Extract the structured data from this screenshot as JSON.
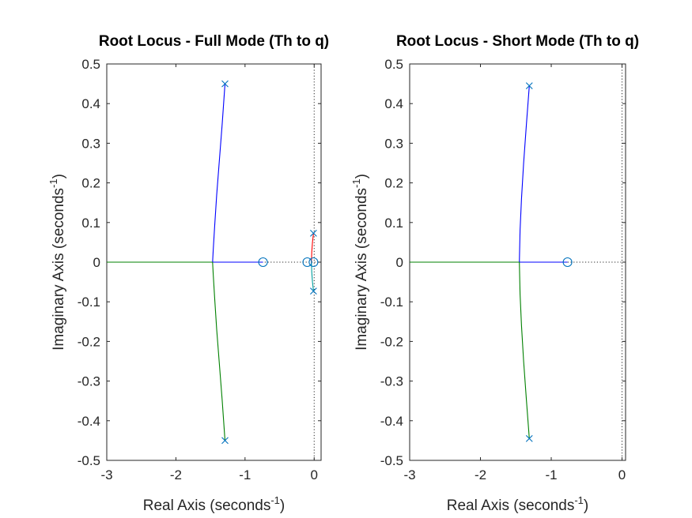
{
  "colors": {
    "axis": "#262626",
    "blue": "#0000ff",
    "green": "#008000",
    "red": "#ff0000",
    "cyan": "#00a0a0",
    "marker": "#0072bd"
  },
  "chart_data": [
    {
      "type": "line",
      "chart_kind": "root-locus",
      "title": "Root Locus - Full Mode (Th to q)",
      "xlabel": "Real Axis (seconds",
      "ylabel": "Imaginary Axis (seconds",
      "label_exponent": "-1",
      "label_close": ")",
      "xlim": [
        -3,
        0.1
      ],
      "ylim": [
        -0.5,
        0.5
      ],
      "xticks": [
        -3,
        -2,
        -1,
        0
      ],
      "xtick_labels": [
        "-3",
        "-2",
        "-1",
        "0"
      ],
      "yticks": [
        -0.5,
        -0.4,
        -0.3,
        -0.2,
        -0.1,
        0,
        0.1,
        0.2,
        0.3,
        0.4,
        0.5
      ],
      "ytick_labels": [
        "-0.5",
        "-0.4",
        "-0.3",
        "-0.2",
        "-0.1",
        "0",
        "0.1",
        "0.2",
        "0.3",
        "0.4",
        "0.5"
      ],
      "grid": false,
      "series": [
        {
          "color": "blue",
          "points": [
            [
              -1.29,
              0.45
            ],
            [
              -1.33,
              0.35
            ],
            [
              -1.37,
              0.26
            ],
            [
              -1.41,
              0.17
            ],
            [
              -1.44,
              0.09
            ],
            [
              -1.46,
              0.03
            ],
            [
              -1.47,
              0.0
            ]
          ]
        },
        {
          "color": "blue",
          "points": [
            [
              -1.47,
              0.0
            ],
            [
              -0.74,
              0.0
            ]
          ]
        },
        {
          "color": "green",
          "points": [
            [
              -1.29,
              -0.45
            ],
            [
              -1.33,
              -0.35
            ],
            [
              -1.37,
              -0.26
            ],
            [
              -1.41,
              -0.17
            ],
            [
              -1.44,
              -0.09
            ],
            [
              -1.46,
              -0.03
            ],
            [
              -1.47,
              0.0
            ]
          ]
        },
        {
          "color": "green",
          "points": [
            [
              -1.47,
              0.0
            ],
            [
              -3.0,
              0.0
            ]
          ]
        },
        {
          "color": "red",
          "points": [
            [
              -0.01,
              0.073
            ],
            [
              -0.025,
              0.05
            ],
            [
              -0.035,
              0.025
            ],
            [
              -0.04,
              0.0
            ]
          ]
        },
        {
          "color": "cyan",
          "points": [
            [
              -0.01,
              -0.073
            ],
            [
              -0.025,
              -0.05
            ],
            [
              -0.035,
              -0.025
            ],
            [
              -0.04,
              0.0
            ]
          ]
        }
      ],
      "poles": [
        [
          -1.29,
          0.45
        ],
        [
          -1.29,
          -0.45
        ],
        [
          -0.01,
          0.073
        ],
        [
          -0.01,
          -0.073
        ]
      ],
      "zeros": [
        [
          -0.74,
          0.0
        ],
        [
          -0.1,
          0.0
        ],
        [
          -0.01,
          0.0
        ]
      ]
    },
    {
      "type": "line",
      "chart_kind": "root-locus",
      "title": "Root Locus - Short Mode (Th to q)",
      "xlabel": "Real Axis (seconds",
      "ylabel": "Imaginary Axis (seconds",
      "label_exponent": "-1",
      "label_close": ")",
      "xlim": [
        -3,
        0.05
      ],
      "ylim": [
        -0.5,
        0.5
      ],
      "xticks": [
        -3,
        -2,
        -1,
        0
      ],
      "xtick_labels": [
        "-3",
        "-2",
        "-1",
        "0"
      ],
      "yticks": [
        -0.5,
        -0.4,
        -0.3,
        -0.2,
        -0.1,
        0,
        0.1,
        0.2,
        0.3,
        0.4,
        0.5
      ],
      "ytick_labels": [
        "-0.5",
        "-0.4",
        "-0.3",
        "-0.2",
        "-0.1",
        "0",
        "0.1",
        "0.2",
        "0.3",
        "0.4",
        "0.5"
      ],
      "grid": false,
      "series": [
        {
          "color": "blue",
          "points": [
            [
              -1.31,
              0.445
            ],
            [
              -1.35,
              0.35
            ],
            [
              -1.39,
              0.25
            ],
            [
              -1.42,
              0.16
            ],
            [
              -1.44,
              0.08
            ],
            [
              -1.45,
              0.0
            ]
          ]
        },
        {
          "color": "blue",
          "points": [
            [
              -1.45,
              0.0
            ],
            [
              -0.77,
              0.0
            ]
          ]
        },
        {
          "color": "green",
          "points": [
            [
              -1.31,
              -0.445
            ],
            [
              -1.35,
              -0.35
            ],
            [
              -1.39,
              -0.25
            ],
            [
              -1.42,
              -0.16
            ],
            [
              -1.44,
              -0.08
            ],
            [
              -1.45,
              0.0
            ]
          ]
        },
        {
          "color": "green",
          "points": [
            [
              -1.45,
              0.0
            ],
            [
              -3.0,
              0.0
            ]
          ]
        }
      ],
      "poles": [
        [
          -1.31,
          0.445
        ],
        [
          -1.31,
          -0.445
        ]
      ],
      "zeros": [
        [
          -0.77,
          0.0
        ]
      ]
    }
  ]
}
